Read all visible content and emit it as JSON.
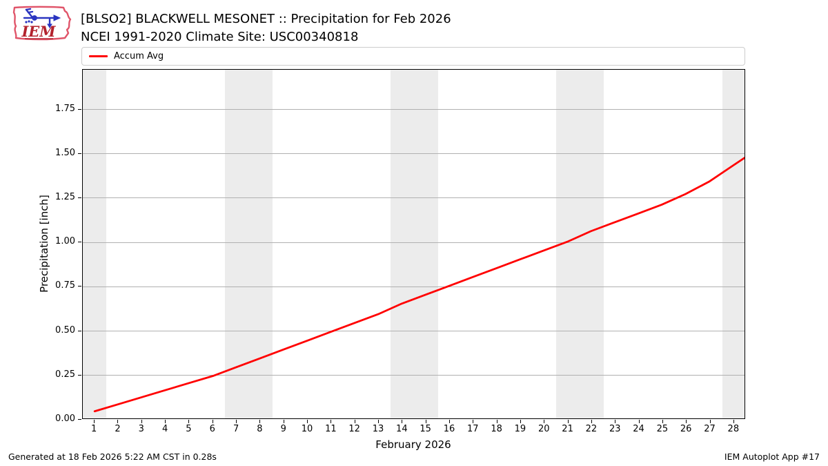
{
  "logo": {
    "text": "IEM"
  },
  "header": {
    "title": "[BLSO2] BLACKWELL MESONET :: Precipitation for Feb 2026",
    "subtitle": "NCEI 1991-2020 Climate Site: USC00340818"
  },
  "legend": {
    "items": [
      {
        "label": "Accum Avg",
        "color": "#ff0000"
      }
    ]
  },
  "chart_data": {
    "type": "line",
    "title": "[BLSO2] BLACKWELL MESONET :: Precipitation for Feb 2026",
    "subtitle": "NCEI 1991-2020 Climate Site: USC00340818",
    "xlabel": "February 2026",
    "ylabel": "Precipitation [inch]",
    "x": [
      1,
      2,
      3,
      4,
      5,
      6,
      7,
      8,
      9,
      10,
      11,
      12,
      13,
      14,
      15,
      16,
      17,
      18,
      19,
      20,
      21,
      22,
      23,
      24,
      25,
      26,
      27,
      28
    ],
    "series": [
      {
        "name": "Accum Avg",
        "color": "#ff0000",
        "values": [
          0.04,
          0.08,
          0.12,
          0.16,
          0.2,
          0.24,
          0.29,
          0.34,
          0.39,
          0.44,
          0.49,
          0.54,
          0.59,
          0.65,
          0.7,
          0.75,
          0.8,
          0.85,
          0.9,
          0.95,
          1.0,
          1.06,
          1.11,
          1.16,
          1.21,
          1.27,
          1.34,
          1.43
        ]
      }
    ],
    "xlim": [
      0.5,
      28.5
    ],
    "ylim": [
      0,
      1.974
    ],
    "xtick_labels": [
      "1",
      "2",
      "3",
      "4",
      "5",
      "6",
      "7",
      "8",
      "9",
      "10",
      "11",
      "12",
      "13",
      "14",
      "15",
      "16",
      "17",
      "18",
      "19",
      "20",
      "21",
      "22",
      "23",
      "24",
      "25",
      "26",
      "27",
      "28"
    ],
    "ytick_values": [
      0,
      0.25,
      0.5,
      0.75,
      1.0,
      1.25,
      1.5,
      1.75
    ],
    "ytick_labels": [
      "0.00",
      "0.25",
      "0.50",
      "0.75",
      "1.00",
      "1.25",
      "1.50",
      "1.75"
    ],
    "weekend_bands": [
      [
        0.5,
        1.5
      ],
      [
        6.5,
        8.5
      ],
      [
        13.5,
        15.5
      ],
      [
        20.5,
        22.5
      ],
      [
        27.5,
        28.5
      ]
    ],
    "band_color": "#ececec",
    "grid_color": "#b0b0b0",
    "grid": "horizontal-only",
    "legend_position": "top",
    "line_extends_to_right_edge": true
  },
  "footer": {
    "left": "Generated at 18 Feb 2026 5:22 AM CST in 0.28s",
    "right": "IEM Autoplot App #17"
  }
}
